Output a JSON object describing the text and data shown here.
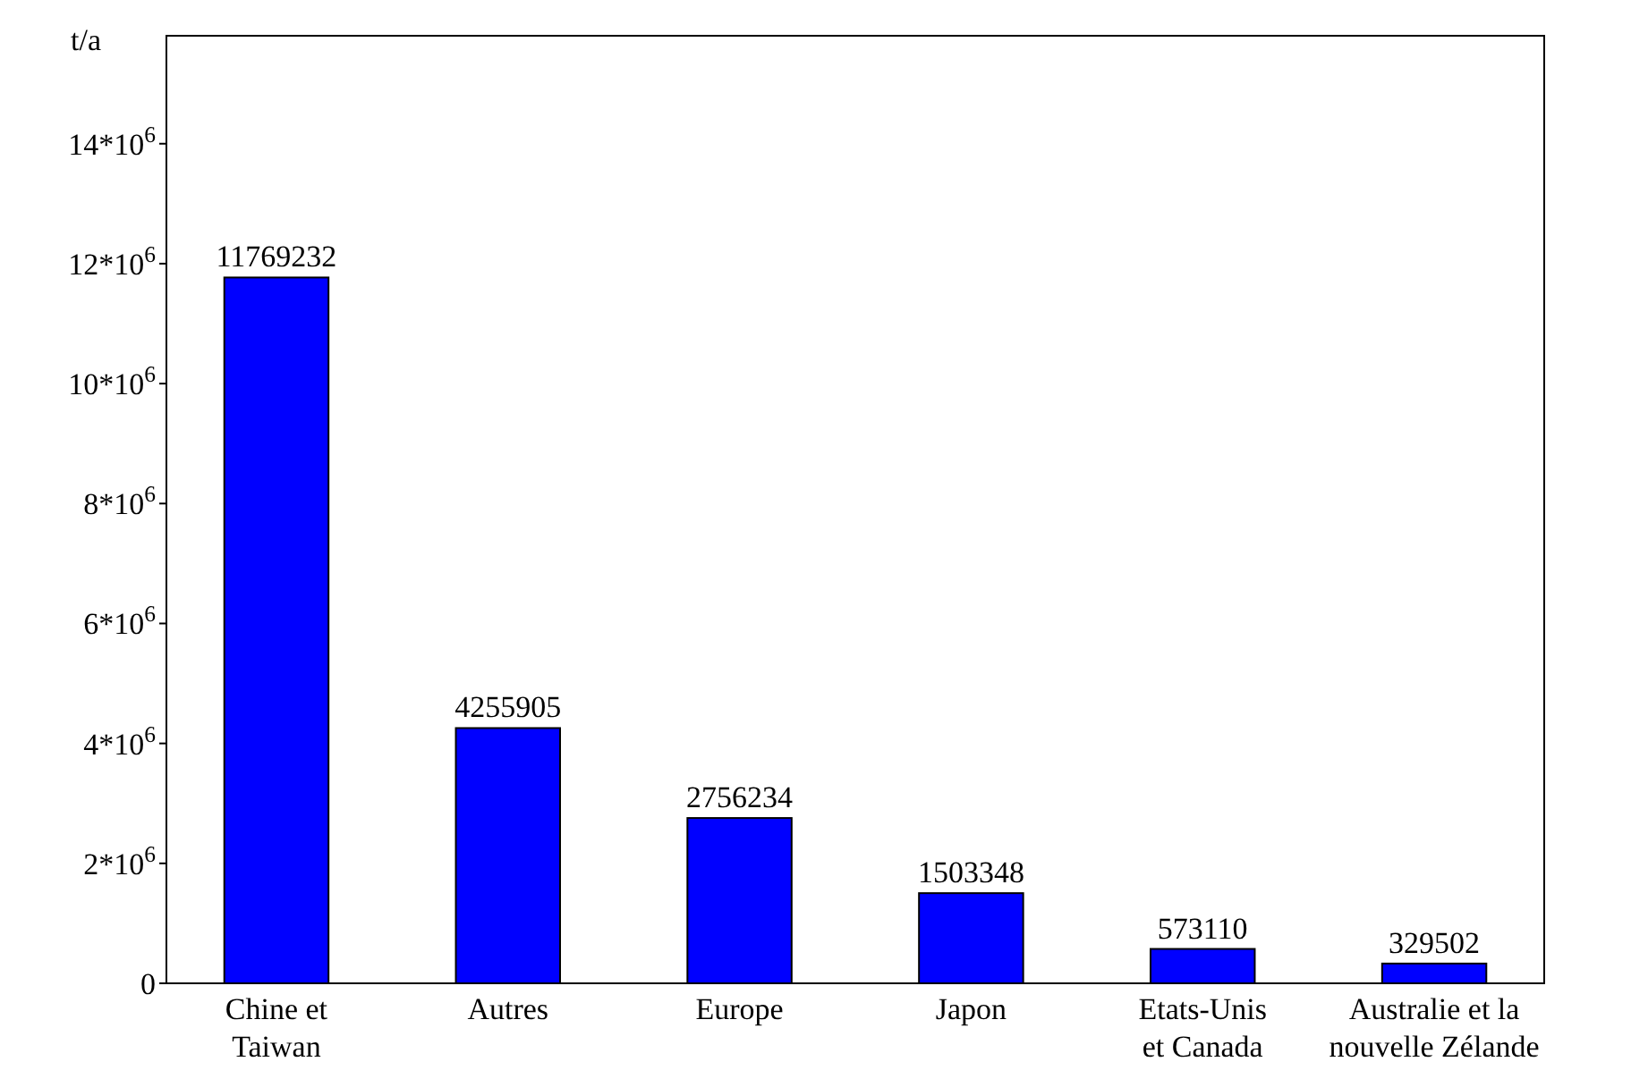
{
  "chart_data": {
    "type": "bar",
    "ylabel": "t/a",
    "categories": [
      "Chine et\nTaiwan",
      "Autres",
      "Europe",
      "Japon",
      "Etats-Unis\net Canada",
      "Australie et la\nnouvelle Zélande"
    ],
    "values": [
      11769232,
      4255905,
      2756234,
      1503348,
      573110,
      329502
    ],
    "color": "#0000ff",
    "data_labels": true,
    "grid": false,
    "ylim": [
      0,
      15800000
    ],
    "yticks": [
      0,
      {
        "value": 2000000,
        "label": "2*10$^{6}$"
      },
      {
        "value": 4000000,
        "label": "4*10$^{6}$"
      },
      {
        "value": 6000000,
        "label": "6*10$^{6}$"
      },
      {
        "value": 8000000,
        "label": "8*10$^{6}$"
      },
      {
        "value": 10000000,
        "label": "10*10$^{6}$"
      },
      {
        "value": 12000000,
        "label": "12*10$^{6}$"
      },
      {
        "value": 14000000,
        "label": "14*10$^{6}$"
      }
    ]
  }
}
